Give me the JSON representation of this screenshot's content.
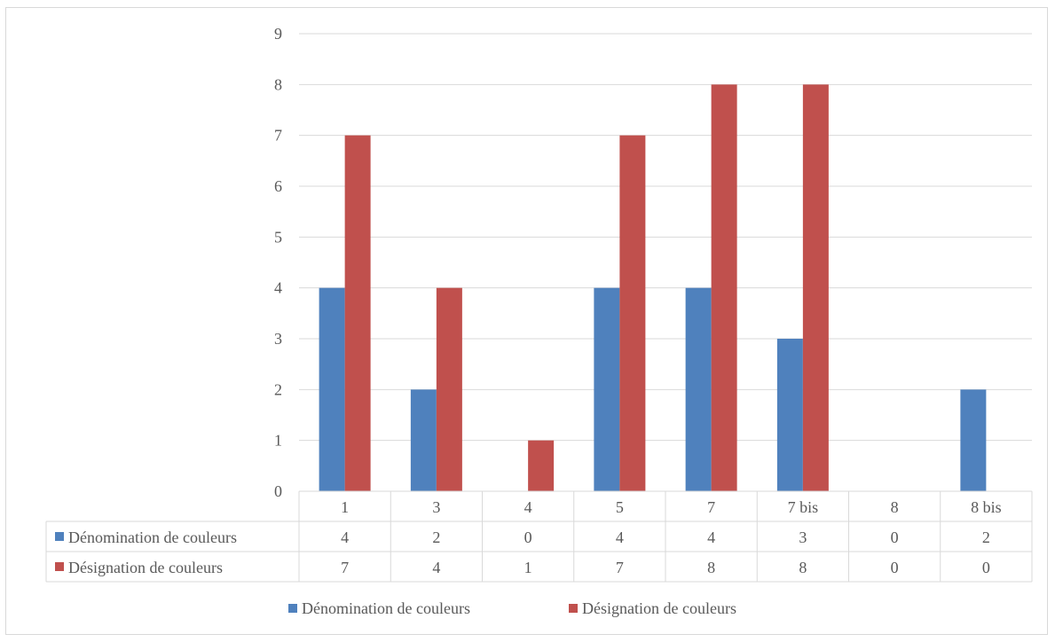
{
  "colors": {
    "series1": "#4f81bd",
    "series2": "#c0504d",
    "grid": "#d9d9d9",
    "text": "#595959"
  },
  "chart_data": {
    "type": "bar",
    "categories": [
      "1",
      "3",
      "4",
      "5",
      "7",
      "7 bis",
      "8",
      "8 bis"
    ],
    "series": [
      {
        "name": "Dénomination de couleurs",
        "values": [
          4,
          2,
          0,
          4,
          4,
          3,
          0,
          2
        ]
      },
      {
        "name": "Désignation de couleurs",
        "values": [
          7,
          4,
          1,
          7,
          8,
          8,
          0,
          0
        ]
      }
    ],
    "y_ticks": [
      "0",
      "1",
      "2",
      "3",
      "4",
      "5",
      "6",
      "7",
      "8",
      "9"
    ],
    "ylim": [
      0,
      9
    ],
    "grid": true,
    "data_table": true,
    "legend_position": "bottom"
  }
}
